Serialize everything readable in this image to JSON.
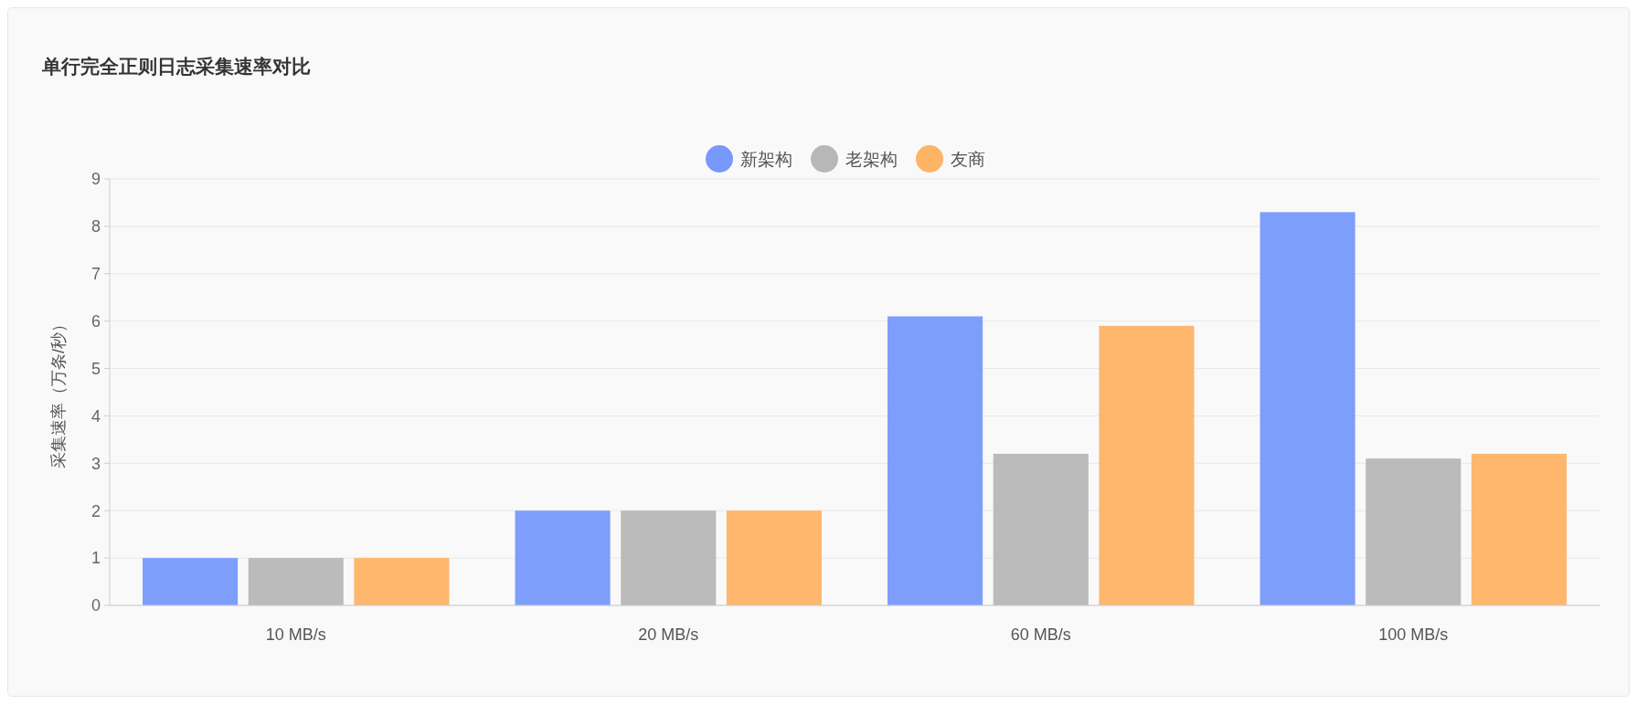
{
  "chart_data": {
    "type": "bar",
    "title": "单行完全正则日志采集速率对比",
    "ylabel": "采集速率（万条/秒）",
    "categories": [
      "10 MB/s",
      "20 MB/s",
      "60 MB/s",
      "100 MB/s"
    ],
    "series": [
      {
        "name": "新架构",
        "color": "#7799fc",
        "values": [
          1,
          2,
          6.1,
          8.3
        ]
      },
      {
        "name": "老架构",
        "color": "#b7b7b7",
        "values": [
          1,
          2,
          3.2,
          3.1
        ]
      },
      {
        "name": "友商",
        "color": "#ffb366",
        "values": [
          1,
          2,
          5.9,
          3.2
        ]
      }
    ],
    "ylim": [
      0,
      9
    ],
    "yticks": [
      0,
      1,
      2,
      3,
      4,
      5,
      6,
      7,
      8,
      9
    ],
    "grid": "y",
    "legend": "top"
  }
}
